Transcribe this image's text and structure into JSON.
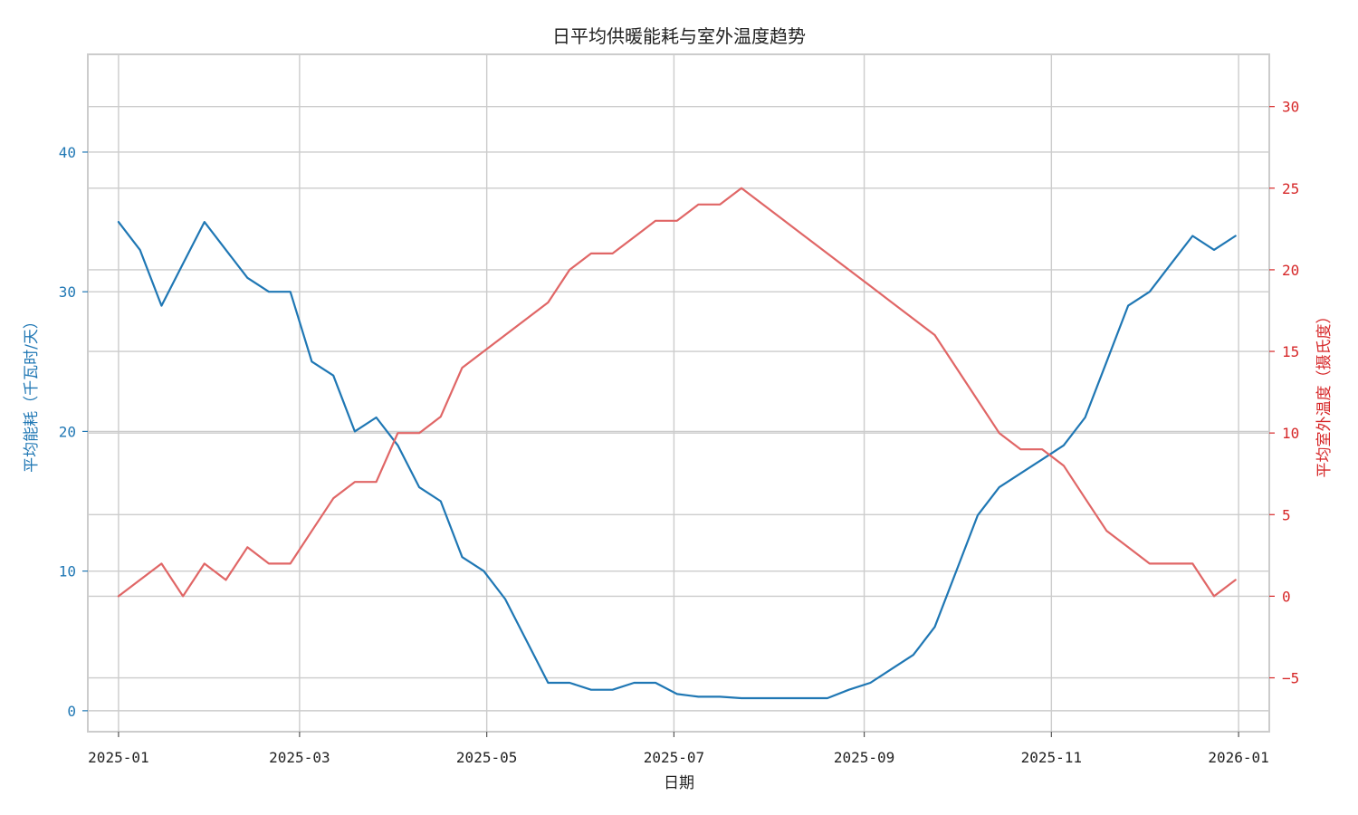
{
  "chart_data": {
    "type": "line",
    "title": "日平均供暖能耗与室外温度趋势",
    "xlabel": "日期",
    "ylabel_left": "平均能耗（千瓦时/天）",
    "ylabel_right": "平均室外温度（摄氏度）",
    "x_ticks": [
      "2025-01",
      "2025-03",
      "2025-05",
      "2025-07",
      "2025-09",
      "2025-11",
      "2026-01"
    ],
    "y_left_ticks": [
      0,
      10,
      20,
      30,
      40
    ],
    "y_right_ticks": [
      -5,
      0,
      5,
      10,
      15,
      20,
      25,
      30
    ],
    "x_range": [
      "2024-12-22",
      "2026-01-11"
    ],
    "y_left_range": [
      -1.5,
      47
    ],
    "y_right_range": [
      -8.3,
      33.2
    ],
    "grid": true,
    "colors": {
      "left_axis": "#1f77b4",
      "right_axis": "#d62728",
      "energy": "#1f77b4",
      "temperature": "#e06666"
    },
    "series": [
      {
        "key": "energy",
        "axis": "left",
        "x": [
          "2025-01-01",
          "2025-01-08",
          "2025-01-15",
          "2025-01-22",
          "2025-01-29",
          "2025-02-05",
          "2025-02-12",
          "2025-02-19",
          "2025-02-26",
          "2025-03-05",
          "2025-03-12",
          "2025-03-19",
          "2025-03-26",
          "2025-04-02",
          "2025-04-09",
          "2025-04-16",
          "2025-04-23",
          "2025-04-30",
          "2025-05-07",
          "2025-05-14",
          "2025-05-21",
          "2025-05-28",
          "2025-06-04",
          "2025-06-11",
          "2025-06-18",
          "2025-06-25",
          "2025-07-02",
          "2025-07-09",
          "2025-07-16",
          "2025-07-23",
          "2025-07-30",
          "2025-08-06",
          "2025-08-13",
          "2025-08-20",
          "2025-08-27",
          "2025-09-03",
          "2025-09-10",
          "2025-09-17",
          "2025-09-24",
          "2025-10-01",
          "2025-10-08",
          "2025-10-15",
          "2025-10-22",
          "2025-10-29",
          "2025-11-05",
          "2025-11-12",
          "2025-11-19",
          "2025-11-26",
          "2025-12-03",
          "2025-12-10",
          "2025-12-17",
          "2025-12-24",
          "2025-12-31"
        ],
        "y": [
          35,
          33,
          29,
          32,
          35,
          33,
          31,
          30,
          30,
          25,
          24,
          20,
          21,
          19,
          16,
          15,
          11,
          10,
          8,
          5,
          2,
          2,
          1.5,
          1.5,
          2,
          2,
          1.2,
          1,
          1,
          0.9,
          0.9,
          0.9,
          0.9,
          0.9,
          1.5,
          2,
          3,
          4,
          6,
          10,
          14,
          16,
          17,
          18,
          19,
          21,
          25,
          29,
          30,
          32,
          34,
          33,
          34
        ]
      },
      {
        "key": "temperature",
        "axis": "right",
        "x": [
          "2025-01-01",
          "2025-01-08",
          "2025-01-15",
          "2025-01-22",
          "2025-01-29",
          "2025-02-05",
          "2025-02-12",
          "2025-02-19",
          "2025-02-26",
          "2025-03-05",
          "2025-03-12",
          "2025-03-19",
          "2025-03-26",
          "2025-04-02",
          "2025-04-09",
          "2025-04-16",
          "2025-04-23",
          "2025-04-30",
          "2025-05-07",
          "2025-05-14",
          "2025-05-21",
          "2025-05-28",
          "2025-06-04",
          "2025-06-11",
          "2025-06-18",
          "2025-06-25",
          "2025-07-02",
          "2025-07-09",
          "2025-07-16",
          "2025-07-23",
          "2025-07-30",
          "2025-08-06",
          "2025-08-13",
          "2025-08-20",
          "2025-08-27",
          "2025-09-03",
          "2025-09-10",
          "2025-09-17",
          "2025-09-24",
          "2025-10-01",
          "2025-10-08",
          "2025-10-15",
          "2025-10-22",
          "2025-10-29",
          "2025-11-05",
          "2025-11-12",
          "2025-11-19",
          "2025-11-26",
          "2025-12-03",
          "2025-12-10",
          "2025-12-17",
          "2025-12-24",
          "2025-12-31"
        ],
        "y": [
          0,
          1,
          2,
          0,
          2,
          1,
          3,
          2,
          2,
          4,
          6,
          7,
          7,
          10,
          10,
          11,
          14,
          15,
          16,
          17,
          18,
          20,
          21,
          21,
          22,
          23,
          23,
          24,
          24,
          25,
          24,
          23,
          22,
          21,
          20,
          19,
          18,
          17,
          16,
          14,
          12,
          10,
          9,
          9,
          8,
          6,
          4,
          3,
          2,
          2,
          2,
          0,
          1
        ]
      }
    ]
  }
}
